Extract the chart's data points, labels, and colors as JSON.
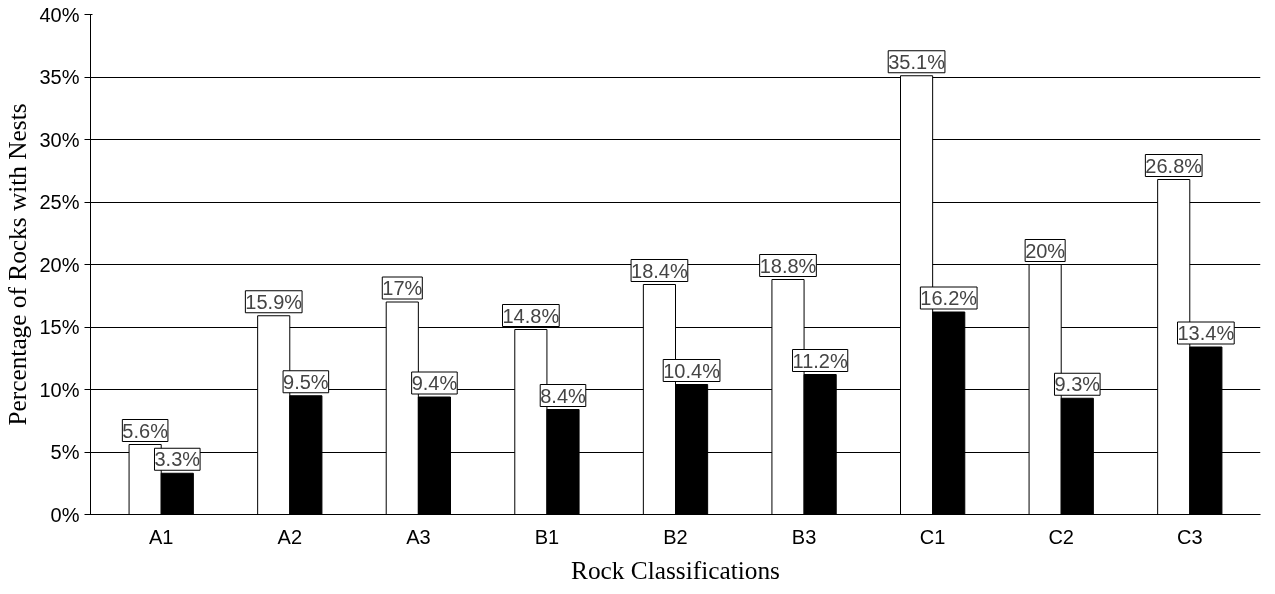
{
  "chart_data": {
    "type": "bar",
    "xlabel": "Rock Classifications",
    "ylabel": "Percentage of Rocks with Nests",
    "categories": [
      "A1",
      "A2",
      "A3",
      "B1",
      "B2",
      "B3",
      "C1",
      "C2",
      "C3"
    ],
    "series": [
      {
        "color": "#ffffff",
        "values": [
          5.6,
          15.9,
          17,
          14.8,
          18.4,
          18.8,
          35.1,
          20,
          26.8
        ],
        "value_labels": [
          "5.6%",
          "15.9%",
          "17%",
          "14.8%",
          "18.4%",
          "18.8%",
          "35.1%",
          "20%",
          "26.8%"
        ]
      },
      {
        "color": "#000000",
        "values": [
          3.3,
          9.5,
          9.4,
          8.4,
          10.4,
          11.2,
          16.2,
          9.3,
          13.4
        ],
        "value_labels": [
          "3.3%",
          "9.5%",
          "9.4%",
          "8.4%",
          "10.4%",
          "11.2%",
          "16.2%",
          "9.3%",
          "13.4%"
        ]
      }
    ],
    "ylim": [
      0,
      40
    ],
    "yticks": [
      {
        "value": 0,
        "label": "0%"
      },
      {
        "value": 5,
        "label": "5%"
      },
      {
        "value": 10,
        "label": "10%"
      },
      {
        "value": 15,
        "label": "15%"
      },
      {
        "value": 20,
        "label": "20%"
      },
      {
        "value": 25,
        "label": "25%"
      },
      {
        "value": 30,
        "label": "30%"
      },
      {
        "value": 35,
        "label": "35%"
      },
      {
        "value": 40,
        "label": "40%"
      }
    ],
    "grid": "y"
  }
}
